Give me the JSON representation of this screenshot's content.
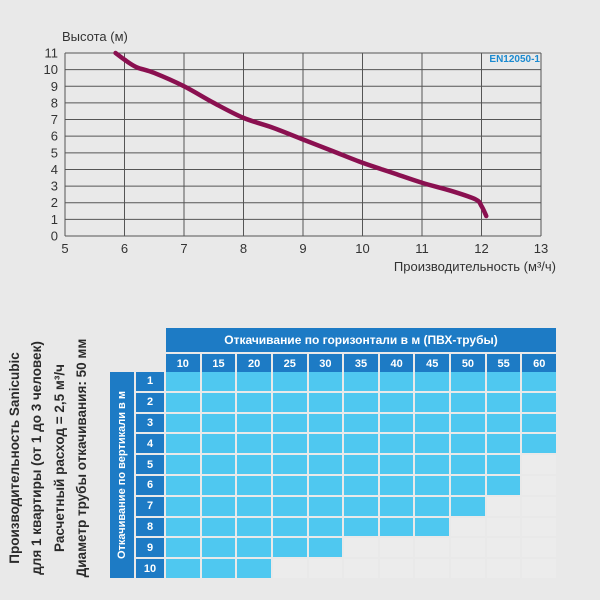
{
  "chart_data": {
    "type": "line",
    "badge": "EN12050-1",
    "xlabel": "Производительность (м³/ч)",
    "ylabel": "Высота (м)",
    "xlim": [
      5,
      13
    ],
    "ylim": [
      0,
      11
    ],
    "x_ticks": [
      5,
      6,
      7,
      8,
      9,
      10,
      11,
      12,
      13
    ],
    "y_ticks": [
      0,
      1,
      2,
      3,
      4,
      5,
      6,
      7,
      8,
      9,
      10,
      11
    ],
    "grid": true,
    "line_color": "#8a1050",
    "series": [
      {
        "points": [
          [
            5.85,
            11
          ],
          [
            6.0,
            10.6
          ],
          [
            6.2,
            10.15
          ],
          [
            6.5,
            9.8
          ],
          [
            7.0,
            9.0
          ],
          [
            7.5,
            8.0
          ],
          [
            8.0,
            7.1
          ],
          [
            8.5,
            6.5
          ],
          [
            9.0,
            5.8
          ],
          [
            9.5,
            5.1
          ],
          [
            10.0,
            4.4
          ],
          [
            10.5,
            3.8
          ],
          [
            11.0,
            3.2
          ],
          [
            11.5,
            2.7
          ],
          [
            11.9,
            2.2
          ],
          [
            12.0,
            1.8
          ],
          [
            12.08,
            1.2
          ]
        ]
      }
    ]
  },
  "table": {
    "title": "Откачивание по горизонтали  в м (ПВХ-трубы)",
    "vertical_title": "Откачивание по вертикали в м",
    "columns": [
      "10",
      "15",
      "20",
      "25",
      "30",
      "35",
      "40",
      "45",
      "50",
      "55",
      "60"
    ],
    "rows": [
      {
        "label": "1",
        "allowed": 11
      },
      {
        "label": "2",
        "allowed": 11
      },
      {
        "label": "3",
        "allowed": 11
      },
      {
        "label": "4",
        "allowed": 11
      },
      {
        "label": "5",
        "allowed": 10
      },
      {
        "label": "6",
        "allowed": 10
      },
      {
        "label": "7",
        "allowed": 9
      },
      {
        "label": "8",
        "allowed": 8
      },
      {
        "label": "9",
        "allowed": 5
      },
      {
        "label": "10",
        "allowed": 3
      }
    ],
    "colors": {
      "header": "#1d7bc5",
      "allowed": "#4fc8f0",
      "not_allowed": "#ececec"
    }
  },
  "side_notes": [
    "Производительность Sanicubic",
    "для 1 квартиры (от 1 до 3 человек)",
    "Расчетный расход = 2,5 м³/ч",
    "Диаметр трубы откачивания: 50 мм"
  ]
}
